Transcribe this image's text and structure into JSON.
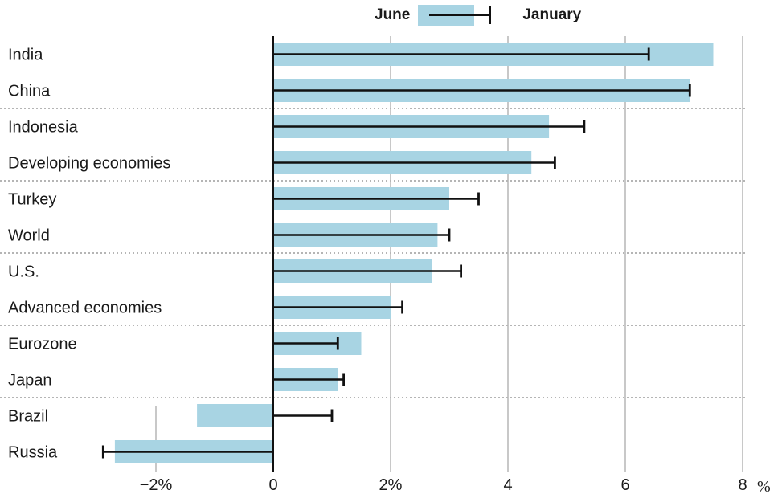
{
  "legend": {
    "june_label": "June",
    "january_label": "January"
  },
  "colors": {
    "bar": "#a8d4e3",
    "whisker": "#111111",
    "grid": "#c8c8c8",
    "divider": "#b5b5b5"
  },
  "chart_data": {
    "type": "bar",
    "orientation": "horizontal",
    "categories": [
      "India",
      "China",
      "Indonesia",
      "Developing economies",
      "Turkey",
      "World",
      "U.S.",
      "Advanced economies",
      "Eurozone",
      "Japan",
      "Brazil",
      "Russia"
    ],
    "series": [
      {
        "name": "June",
        "values": [
          7.5,
          7.1,
          4.7,
          4.4,
          3.0,
          2.8,
          2.7,
          2.0,
          1.5,
          1.1,
          -1.3,
          -2.7
        ]
      },
      {
        "name": "January",
        "values": [
          6.4,
          7.1,
          5.3,
          4.8,
          3.5,
          3.0,
          3.2,
          2.2,
          1.1,
          1.2,
          1.0,
          -2.9
        ]
      }
    ],
    "xlim": [
      -2.75,
      8
    ],
    "xticks": [
      {
        "value": -2,
        "label": "−2%"
      },
      {
        "value": 0,
        "label": "0"
      },
      {
        "value": 2,
        "label": "2%"
      },
      {
        "value": 4,
        "label": "4"
      },
      {
        "value": 6,
        "label": "6"
      },
      {
        "value": 8,
        "label": "8"
      }
    ],
    "unit_label": "%",
    "title": "",
    "xlabel": "",
    "ylabel": "",
    "grid": true,
    "legend_position": "top"
  }
}
